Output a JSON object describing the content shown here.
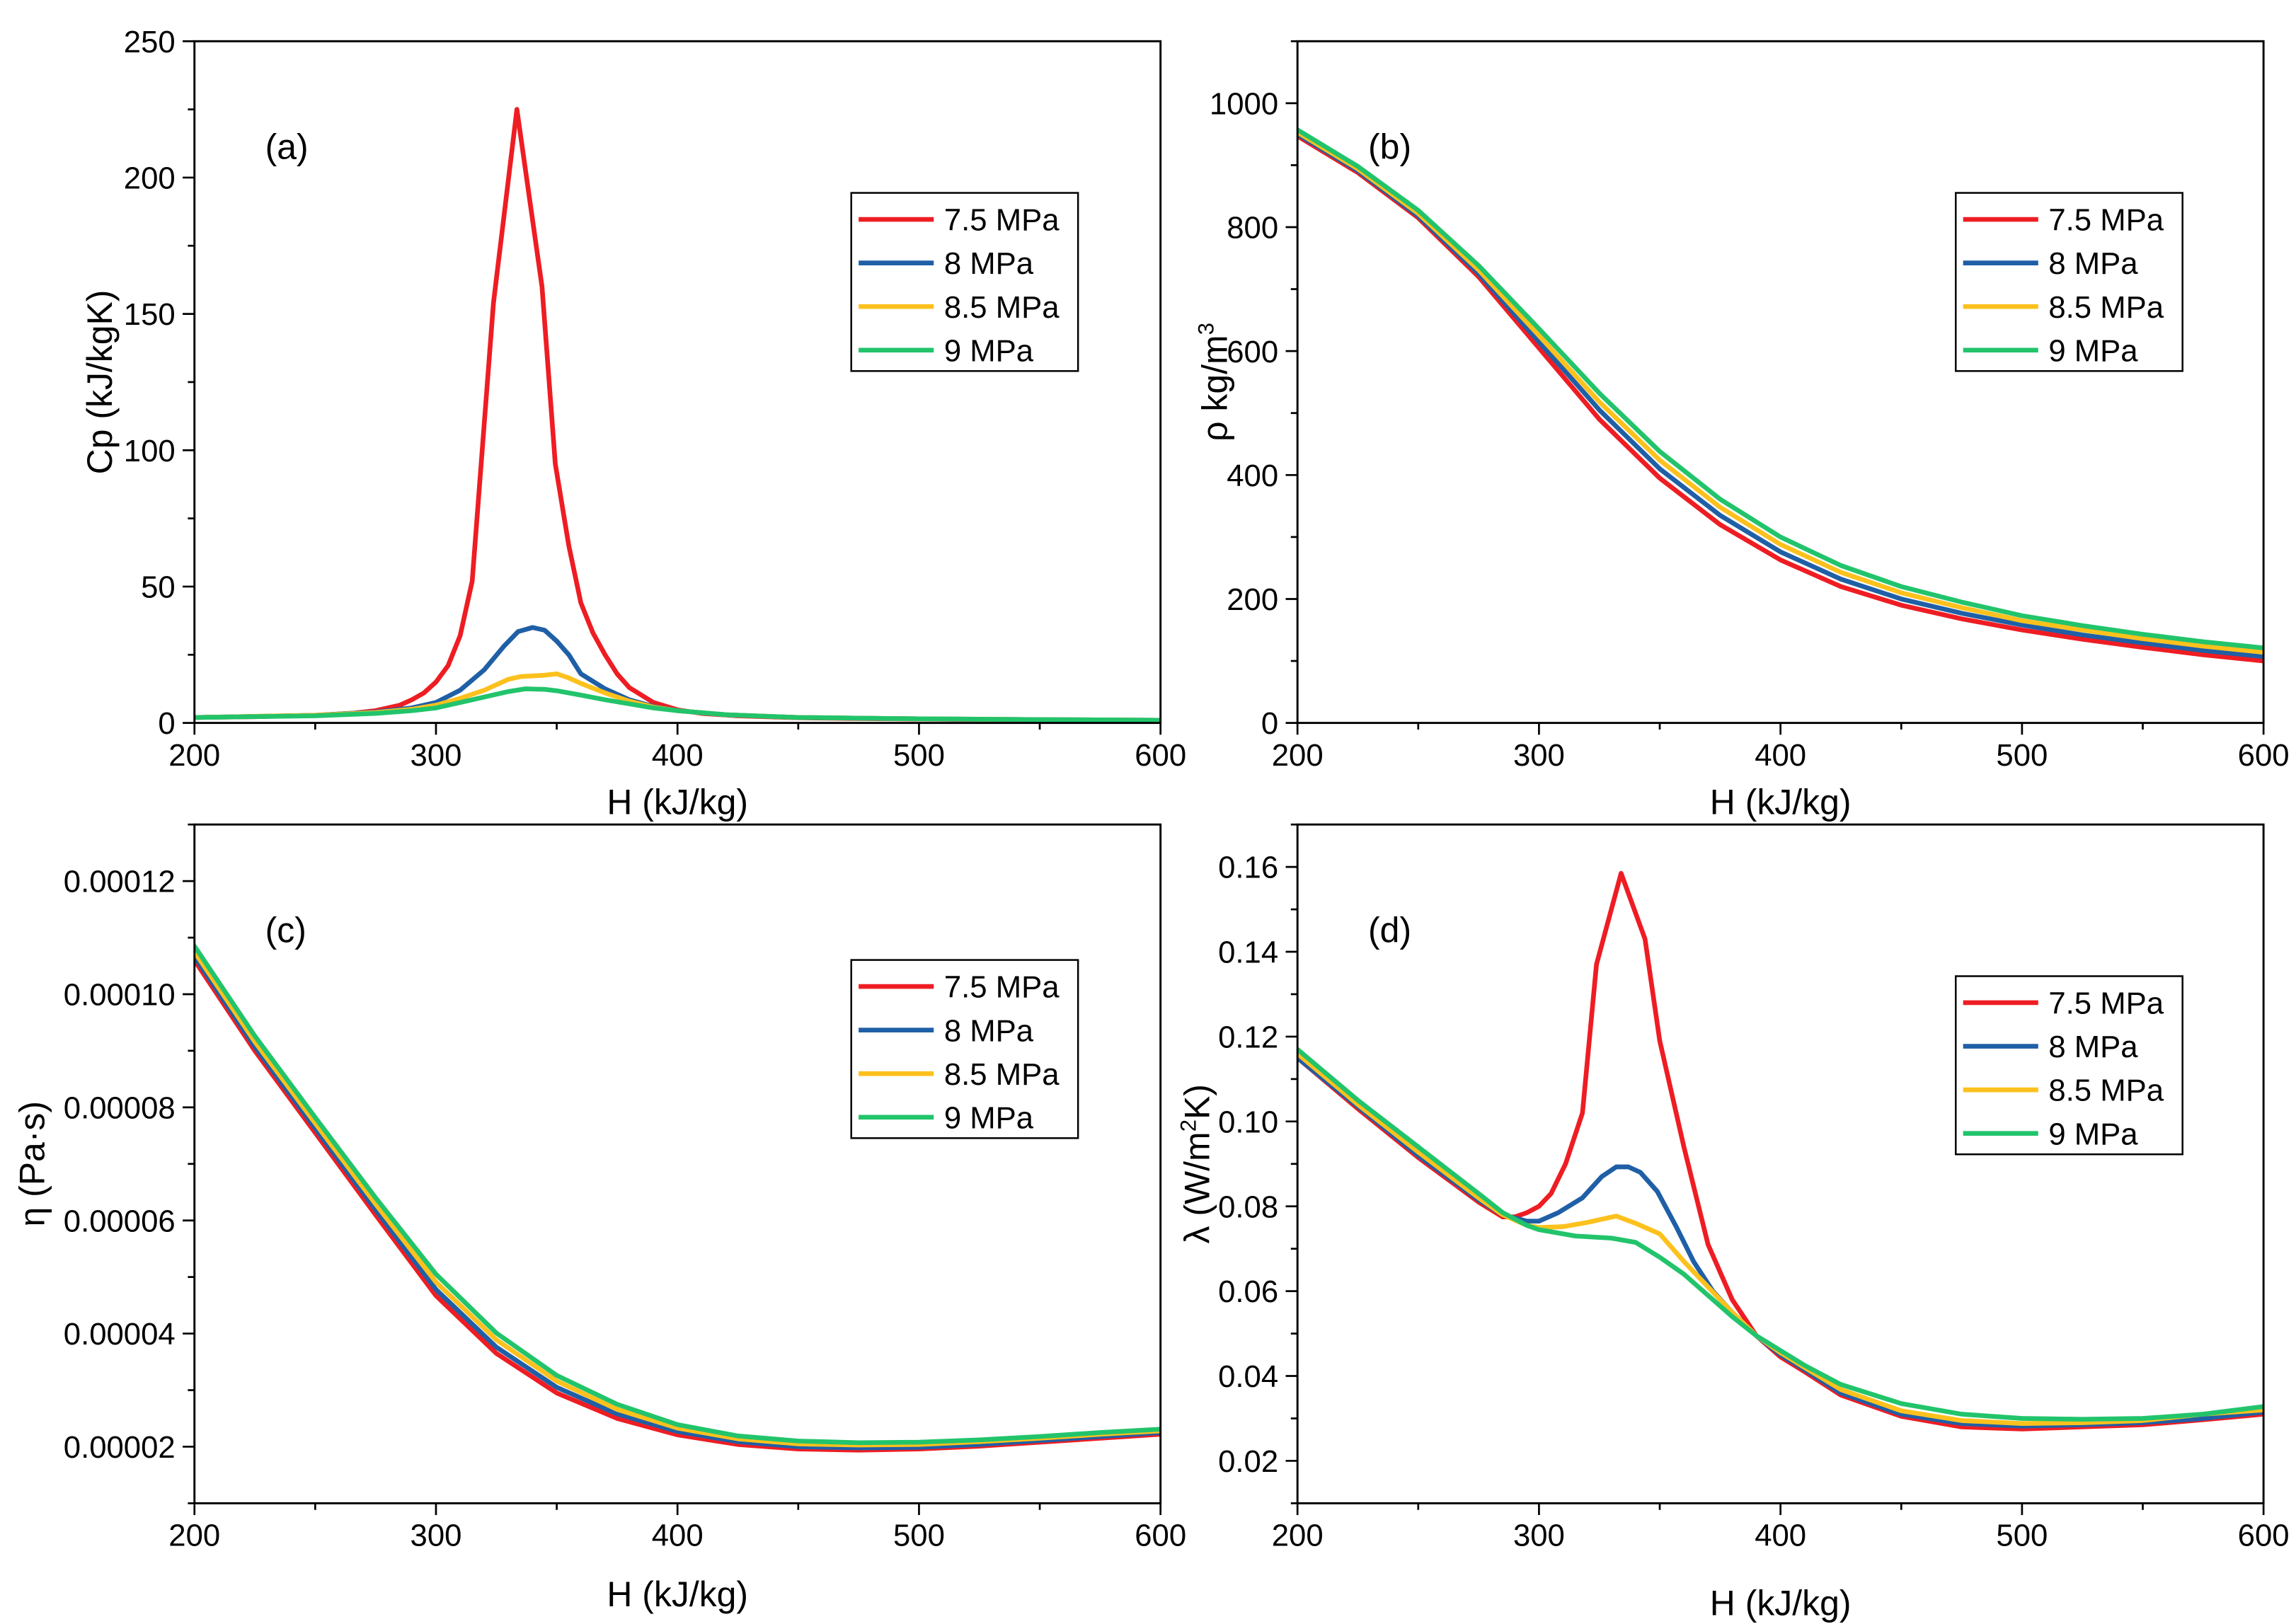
{
  "chart_data": [
    {
      "panel_id": "a",
      "type": "line",
      "panel_label": "(a)",
      "xlabel": "H (kJ/kg)",
      "ylabel": {
        "main": "Cp (kJ/kgK)"
      },
      "xlim": [
        200,
        600
      ],
      "ylim": [
        0,
        250
      ],
      "xticks": {
        "values": [
          200,
          300,
          400,
          500,
          600
        ],
        "labels": [
          "200",
          "300",
          "400",
          "500",
          "600"
        ]
      },
      "yticks": {
        "values": [
          0,
          50,
          100,
          150,
          200,
          250
        ],
        "labels": [
          "0",
          "50",
          "100",
          "150",
          "200",
          "250"
        ]
      },
      "grid": false,
      "legend_position": "top-right",
      "series": [
        {
          "name": "7.5 MPa",
          "color": "#ee1d23",
          "x": [
            200,
            225,
            250,
            265,
            275,
            285,
            290,
            295,
            300,
            305,
            310,
            315,
            323.8,
            333.5,
            343.9,
            349.4,
            355,
            360,
            365,
            370,
            375,
            380,
            390,
            400,
            410,
            425,
            450,
            475,
            500,
            550,
            600
          ],
          "y": [
            2,
            2.3,
            2.8,
            3.5,
            4.5,
            6.5,
            8.5,
            11,
            15,
            21,
            32,
            52,
            154,
            225,
            160,
            95,
            65,
            44,
            33,
            25,
            18,
            13,
            7.5,
            4.8,
            3.5,
            2.6,
            1.9,
            1.6,
            1.4,
            1.1,
            0.9
          ]
        },
        {
          "name": "8 MPa",
          "color": "#1f5fa6",
          "x": [
            200,
            250,
            275,
            290,
            300,
            310,
            320,
            328,
            334,
            340,
            345,
            350,
            355,
            360,
            370,
            380,
            390,
            400,
            420,
            450,
            500,
            550,
            600
          ],
          "y": [
            2,
            2.8,
            4,
            5.5,
            7.5,
            12,
            19.5,
            28,
            33.5,
            35,
            34,
            30,
            25,
            18,
            12.5,
            8.5,
            6,
            4.5,
            3,
            2,
            1.5,
            1.2,
            1
          ]
        },
        {
          "name": "8.5 MPa",
          "color": "#fdc11d",
          "x": [
            200,
            250,
            275,
            290,
            300,
            310,
            320,
            330,
            335,
            345,
            350,
            355,
            360,
            370,
            380,
            390,
            400,
            420,
            450,
            500,
            550,
            600
          ],
          "y": [
            2,
            2.8,
            3.8,
            5,
            6.5,
            9,
            12,
            16,
            17,
            17.5,
            18,
            16.5,
            14.5,
            11,
            8,
            5.8,
            4.5,
            3,
            2,
            1.5,
            1.2,
            1
          ]
        },
        {
          "name": "9 MPa",
          "color": "#22c46b",
          "x": [
            200,
            250,
            275,
            290,
            300,
            310,
            320,
            330,
            337,
            345,
            350,
            360,
            370,
            380,
            390,
            400,
            420,
            450,
            500,
            550,
            600
          ],
          "y": [
            2,
            2.6,
            3.5,
            4.5,
            5.5,
            7.5,
            9.5,
            11.5,
            12.5,
            12.3,
            11.8,
            10.2,
            8.5,
            7,
            5.5,
            4.5,
            3,
            2,
            1.5,
            1.2,
            1
          ]
        }
      ]
    },
    {
      "panel_id": "b",
      "type": "line",
      "panel_label": "(b)",
      "xlabel": "H (kJ/kg)",
      "ylabel": {
        "main": "ρ kg/m",
        "sup": "3"
      },
      "xlim": [
        200,
        600
      ],
      "ylim": [
        0,
        1100
      ],
      "xticks": {
        "values": [
          200,
          300,
          400,
          500,
          600
        ],
        "labels": [
          "200",
          "300",
          "400",
          "500",
          "600"
        ]
      },
      "yticks": {
        "values": [
          0,
          200,
          400,
          600,
          800,
          1000
        ],
        "labels": [
          "0",
          "200",
          "400",
          "600",
          "800",
          "1000"
        ]
      },
      "grid": false,
      "legend_position": "top-right",
      "series": [
        {
          "name": "7.5 MPa",
          "color": "#ee1d23",
          "x": [
            200,
            225,
            250,
            275,
            300,
            325,
            350,
            375,
            400,
            425,
            450,
            475,
            500,
            525,
            550,
            575,
            600
          ],
          "y": [
            947,
            888,
            815,
            720,
            605,
            490,
            395,
            320,
            263,
            220,
            190,
            168,
            150,
            135,
            122,
            110,
            100
          ]
        },
        {
          "name": "8 MPa",
          "color": "#1f5fa6",
          "x": [
            200,
            225,
            250,
            275,
            300,
            325,
            350,
            375,
            400,
            425,
            450,
            475,
            500,
            525,
            550,
            575,
            600
          ],
          "y": [
            950,
            891,
            818,
            725,
            615,
            505,
            410,
            335,
            276,
            232,
            200,
            177,
            158,
            142,
            129,
            117,
            107
          ]
        },
        {
          "name": "8.5 MPa",
          "color": "#fdc11d",
          "x": [
            200,
            225,
            250,
            275,
            300,
            325,
            350,
            375,
            400,
            425,
            450,
            475,
            500,
            525,
            550,
            575,
            600
          ],
          "y": [
            953,
            894,
            822,
            731,
            625,
            518,
            424,
            348,
            288,
            243,
            210,
            186,
            165,
            150,
            136,
            124,
            114
          ]
        },
        {
          "name": "9 MPa",
          "color": "#22c46b",
          "x": [
            200,
            225,
            250,
            275,
            300,
            325,
            350,
            375,
            400,
            425,
            450,
            475,
            500,
            525,
            550,
            575,
            600
          ],
          "y": [
            957,
            898,
            827,
            738,
            636,
            532,
            438,
            361,
            300,
            254,
            220,
            195,
            173,
            157,
            143,
            131,
            121
          ]
        }
      ]
    },
    {
      "panel_id": "c",
      "type": "line",
      "panel_label": "(c)",
      "xlabel": "H (kJ/kg)",
      "ylabel": {
        "main": "η (Pa·s)"
      },
      "xlim": [
        200,
        600
      ],
      "ylim": [
        1e-05,
        0.00013
      ],
      "xticks": {
        "values": [
          200,
          300,
          400,
          500,
          600
        ],
        "labels": [
          "200",
          "300",
          "400",
          "500",
          "600"
        ]
      },
      "yticks": {
        "values": [
          2e-05,
          4e-05,
          6e-05,
          8e-05,
          0.0001,
          0.00012
        ],
        "labels": [
          "0.00002",
          "0.00004",
          "0.00006",
          "0.00008",
          "0.00010",
          "0.00012"
        ]
      },
      "grid": false,
      "legend_position": "top-right",
      "series": [
        {
          "name": "7.5 MPa",
          "color": "#ee1d23",
          "x": [
            200,
            225,
            250,
            275,
            300,
            325,
            350,
            375,
            400,
            425,
            450,
            475,
            500,
            525,
            550,
            575,
            600
          ],
          "y": [
            0.000106,
            9e-05,
            7.55e-05,
            6.1e-05,
            4.67e-05,
            3.65e-05,
            2.95e-05,
            2.5e-05,
            2.21e-05,
            2.04e-05,
            1.96e-05,
            1.94e-05,
            1.96e-05,
            2.01e-05,
            2.08e-05,
            2.15e-05,
            2.22e-05
          ]
        },
        {
          "name": "8 MPa",
          "color": "#1f5fa6",
          "x": [
            200,
            225,
            250,
            275,
            300,
            325,
            350,
            375,
            400,
            425,
            450,
            475,
            500,
            525,
            550,
            575,
            600
          ],
          "y": [
            0.0001067,
            9.07e-05,
            7.63e-05,
            6.19e-05,
            4.78e-05,
            3.76e-05,
            3.05e-05,
            2.58e-05,
            2.27e-05,
            2.09e-05,
            2e-05,
            1.98e-05,
            1.99e-05,
            2.04e-05,
            2.11e-05,
            2.18e-05,
            2.25e-05
          ]
        },
        {
          "name": "8.5 MPa",
          "color": "#fdc11d",
          "x": [
            200,
            225,
            250,
            275,
            300,
            325,
            350,
            375,
            400,
            425,
            450,
            475,
            500,
            525,
            550,
            575,
            600
          ],
          "y": [
            0.0001075,
            9.16e-05,
            7.72e-05,
            6.29e-05,
            4.91e-05,
            3.89e-05,
            3.16e-05,
            2.66e-05,
            2.33e-05,
            2.14e-05,
            2.05e-05,
            2.03e-05,
            2.04e-05,
            2.09e-05,
            2.15e-05,
            2.22e-05,
            2.28e-05
          ]
        },
        {
          "name": "9 MPa",
          "color": "#22c46b",
          "x": [
            200,
            225,
            250,
            275,
            300,
            325,
            350,
            375,
            400,
            425,
            450,
            475,
            500,
            525,
            550,
            575,
            600
          ],
          "y": [
            0.0001085,
            9.26e-05,
            7.82e-05,
            6.4e-05,
            5.05e-05,
            4.01e-05,
            3.26e-05,
            2.75e-05,
            2.39e-05,
            2.19e-05,
            2.1e-05,
            2.07e-05,
            2.08e-05,
            2.12e-05,
            2.18e-05,
            2.25e-05,
            2.31e-05
          ]
        }
      ]
    },
    {
      "panel_id": "d",
      "type": "line",
      "panel_label": "(d)",
      "xlabel": "H (kJ/kg)",
      "ylabel": {
        "main": "λ (W/m",
        "sup": "2",
        "tail": "K)"
      },
      "xlim": [
        200,
        600
      ],
      "ylim": [
        0.01,
        0.17
      ],
      "xticks": {
        "values": [
          200,
          300,
          400,
          500,
          600
        ],
        "labels": [
          "200",
          "300",
          "400",
          "500",
          "600"
        ]
      },
      "yticks": {
        "values": [
          0.02,
          0.04,
          0.06,
          0.08,
          0.1,
          0.12,
          0.14,
          0.16
        ],
        "labels": [
          "0.02",
          "0.04",
          "0.06",
          "0.08",
          "0.10",
          "0.12",
          "0.14",
          "0.16"
        ]
      },
      "grid": false,
      "legend_position": "top-right",
      "series": [
        {
          "name": "7.5 MPa",
          "color": "#ee1d23",
          "x": [
            200,
            225,
            250,
            275,
            285,
            290,
            295,
            300,
            305,
            311,
            318,
            323.8,
            334,
            343.9,
            350,
            360,
            370,
            380,
            390,
            400,
            410,
            425,
            450,
            475,
            500,
            525,
            550,
            575,
            600
          ],
          "y": [
            0.115,
            0.103,
            0.0915,
            0.081,
            0.0775,
            0.0775,
            0.0785,
            0.08,
            0.083,
            0.09,
            0.102,
            0.137,
            0.1585,
            0.143,
            0.119,
            0.094,
            0.071,
            0.058,
            0.0495,
            0.0445,
            0.041,
            0.0355,
            0.0305,
            0.028,
            0.0275,
            0.028,
            0.0285,
            0.0297,
            0.031
          ]
        },
        {
          "name": "8 MPa",
          "color": "#1f5fa6",
          "x": [
            200,
            225,
            250,
            275,
            285,
            295,
            300,
            308,
            318,
            326,
            332,
            337,
            342,
            349,
            357,
            364,
            372,
            380,
            390,
            400,
            410,
            425,
            450,
            475,
            500,
            525,
            550,
            575,
            600
          ],
          "y": [
            0.115,
            0.1035,
            0.092,
            0.0815,
            0.078,
            0.0765,
            0.0765,
            0.0785,
            0.082,
            0.087,
            0.0893,
            0.0893,
            0.088,
            0.0835,
            0.075,
            0.067,
            0.06,
            0.055,
            0.0495,
            0.045,
            0.0415,
            0.036,
            0.031,
            0.0288,
            0.0282,
            0.0285,
            0.029,
            0.03,
            0.0315
          ]
        },
        {
          "name": "8.5 MPa",
          "color": "#fdc11d",
          "x": [
            200,
            225,
            250,
            275,
            285,
            295,
            300,
            310,
            320,
            332,
            340,
            350,
            360,
            370,
            380,
            390,
            400,
            410,
            425,
            450,
            475,
            500,
            525,
            550,
            575,
            600
          ],
          "y": [
            0.116,
            0.104,
            0.0928,
            0.082,
            0.078,
            0.0755,
            0.075,
            0.0752,
            0.0762,
            0.0777,
            0.076,
            0.0735,
            0.067,
            0.061,
            0.055,
            0.0495,
            0.0455,
            0.042,
            0.0368,
            0.0318,
            0.0295,
            0.0288,
            0.029,
            0.0295,
            0.031,
            0.032
          ]
        },
        {
          "name": "9 MPa",
          "color": "#22c46b",
          "x": [
            200,
            225,
            250,
            275,
            285,
            295,
            300,
            315,
            330,
            340,
            350,
            360,
            370,
            380,
            390,
            400,
            410,
            425,
            450,
            475,
            500,
            525,
            550,
            575,
            600
          ],
          "y": [
            0.117,
            0.105,
            0.094,
            0.083,
            0.0785,
            0.0755,
            0.0745,
            0.073,
            0.0725,
            0.0715,
            0.068,
            0.064,
            0.059,
            0.054,
            0.0495,
            0.046,
            0.0425,
            0.038,
            0.0335,
            0.031,
            0.03,
            0.0298,
            0.03,
            0.031,
            0.0328
          ]
        }
      ]
    }
  ]
}
